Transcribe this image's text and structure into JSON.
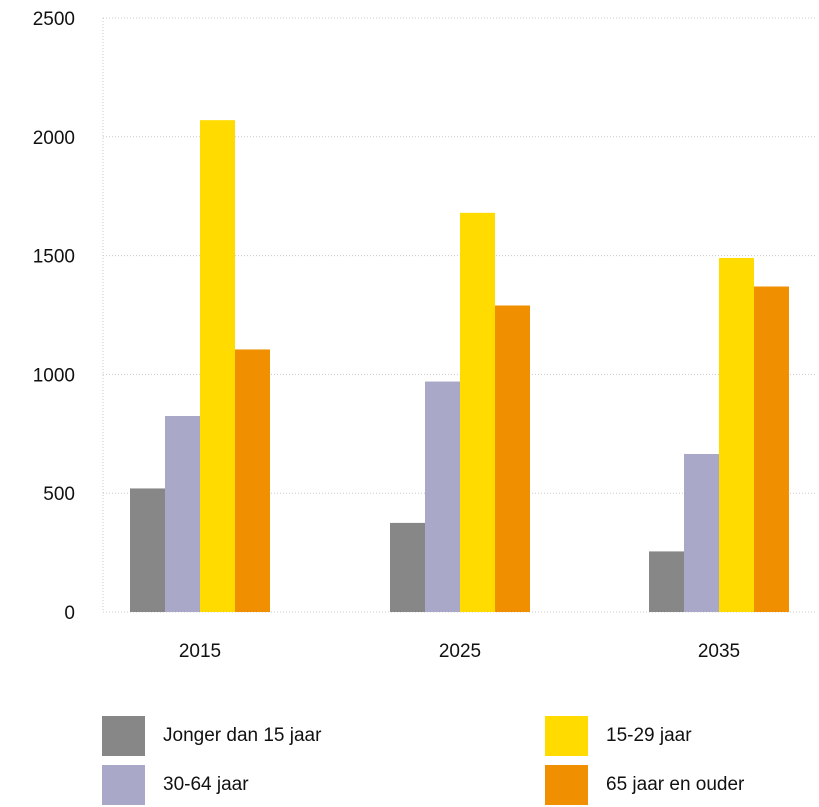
{
  "chart_data": {
    "type": "bar",
    "categories": [
      "2015",
      "2025",
      "2035"
    ],
    "series": [
      {
        "name": "Jonger dan 15 jaar",
        "color": "#878787",
        "values": [
          520,
          375,
          255
        ]
      },
      {
        "name": "30-64 jaar",
        "color": "#aaa8c9",
        "values": [
          825,
          970,
          665
        ]
      },
      {
        "name": "15-29 jaar",
        "color": "#ffdb00",
        "values": [
          2070,
          1680,
          1490
        ]
      },
      {
        "name": "65 jaar en ouder",
        "color": "#f09000",
        "values": [
          1105,
          1290,
          1370
        ]
      }
    ],
    "yticks": [
      "0",
      "500",
      "1000",
      "1500",
      "2000",
      "2500"
    ],
    "ylim": [
      0,
      2500
    ],
    "grid": true,
    "legend": "bottom"
  },
  "legend": {
    "items": [
      {
        "label": "Jonger dan 15 jaar",
        "color": "#878787"
      },
      {
        "label": "15-29 jaar",
        "color": "#ffdb00"
      },
      {
        "label": "30-64 jaar",
        "color": "#aaa8c9"
      },
      {
        "label": "65 jaar en ouder",
        "color": "#f09000"
      }
    ]
  }
}
